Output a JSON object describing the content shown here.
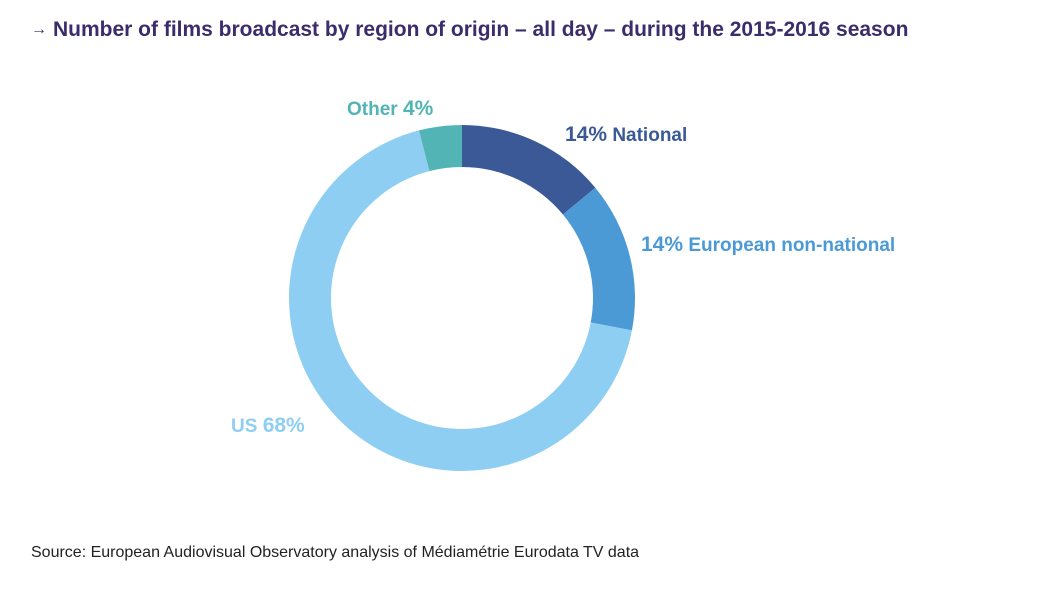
{
  "title": {
    "arrow_icon": "→",
    "text": "Number of films broadcast by region of origin – all day – during the 2015-2016 season"
  },
  "chart_data": {
    "type": "pie",
    "variant": "donut",
    "title": "Number of films broadcast by region of origin – all day – during the 2015-2016 season",
    "unit": "%",
    "start": "top, clockwise",
    "slices": [
      {
        "name": "National",
        "value": 14,
        "label": "14% National",
        "color": "#3b5996"
      },
      {
        "name": "European non-national",
        "value": 14,
        "label": "14% European non-national",
        "color": "#4b9ad6"
      },
      {
        "name": "US",
        "value": 68,
        "label": "US 68%",
        "color": "#8ecef3"
      },
      {
        "name": "Other",
        "value": 4,
        "label": "Other 4%",
        "color": "#52b4b4"
      }
    ]
  },
  "labels": {
    "other": {
      "name": "Other",
      "pct": "4%"
    },
    "national": {
      "pct": "14%",
      "name": "National"
    },
    "european": {
      "pct": "14%",
      "name": "European non-national"
    },
    "us": {
      "name": "US",
      "pct": "68%"
    }
  },
  "source": "Source: European Audiovisual Observatory analysis of Médiamétrie Eurodata TV data"
}
